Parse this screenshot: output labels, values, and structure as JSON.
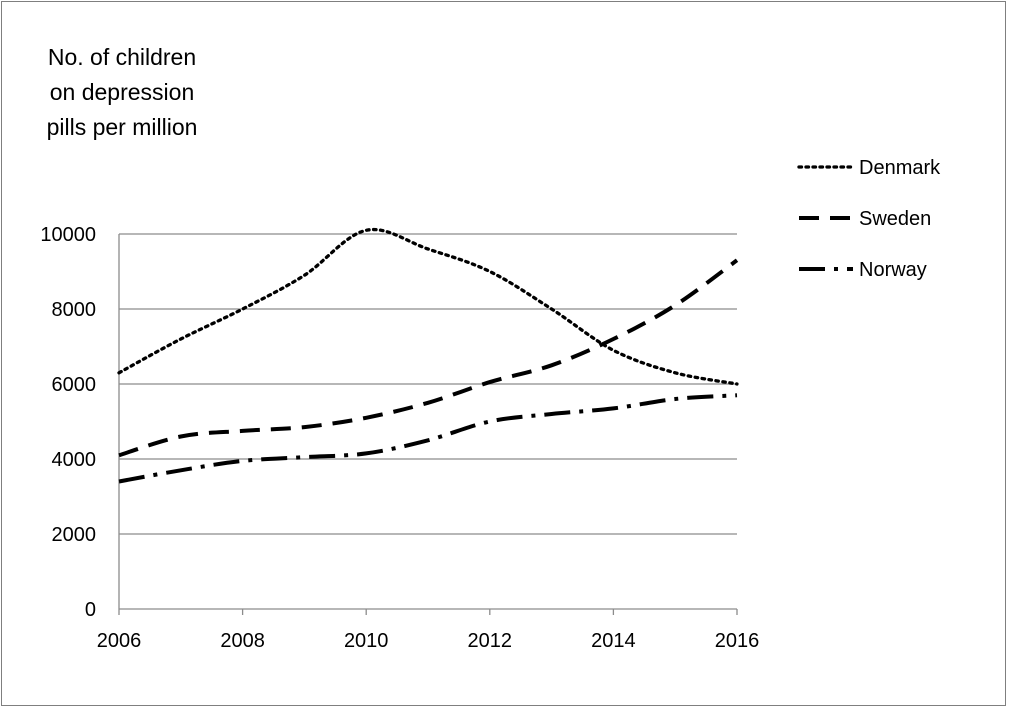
{
  "chart_data": {
    "type": "line",
    "title": "",
    "ylabel_lines": [
      "No. of children",
      "on depression",
      "pills per million"
    ],
    "xlabel": "",
    "x": [
      2006,
      2007,
      2008,
      2009,
      2010,
      2011,
      2012,
      2013,
      2014,
      2015,
      2016
    ],
    "xticks": [
      2006,
      2008,
      2010,
      2012,
      2014,
      2016
    ],
    "yticks": [
      0,
      2000,
      4000,
      6000,
      8000,
      10000
    ],
    "xlim": [
      2006,
      2016
    ],
    "ylim": [
      0,
      10000
    ],
    "grid": "horizontal",
    "legend_position": "right",
    "series": [
      {
        "name": "Denmark",
        "style": "dotted",
        "values": [
          6300,
          7200,
          8000,
          8900,
          10100,
          9600,
          9000,
          8000,
          6900,
          6300,
          6000
        ]
      },
      {
        "name": "Sweden",
        "style": "dashed",
        "values": [
          4100,
          4600,
          4750,
          4850,
          5100,
          5500,
          6050,
          6500,
          7200,
          8100,
          9300
        ]
      },
      {
        "name": "Norway",
        "style": "long-dash-dot",
        "values": [
          3400,
          3700,
          3950,
          4050,
          4150,
          4500,
          5000,
          5200,
          5350,
          5600,
          5700
        ]
      }
    ]
  }
}
